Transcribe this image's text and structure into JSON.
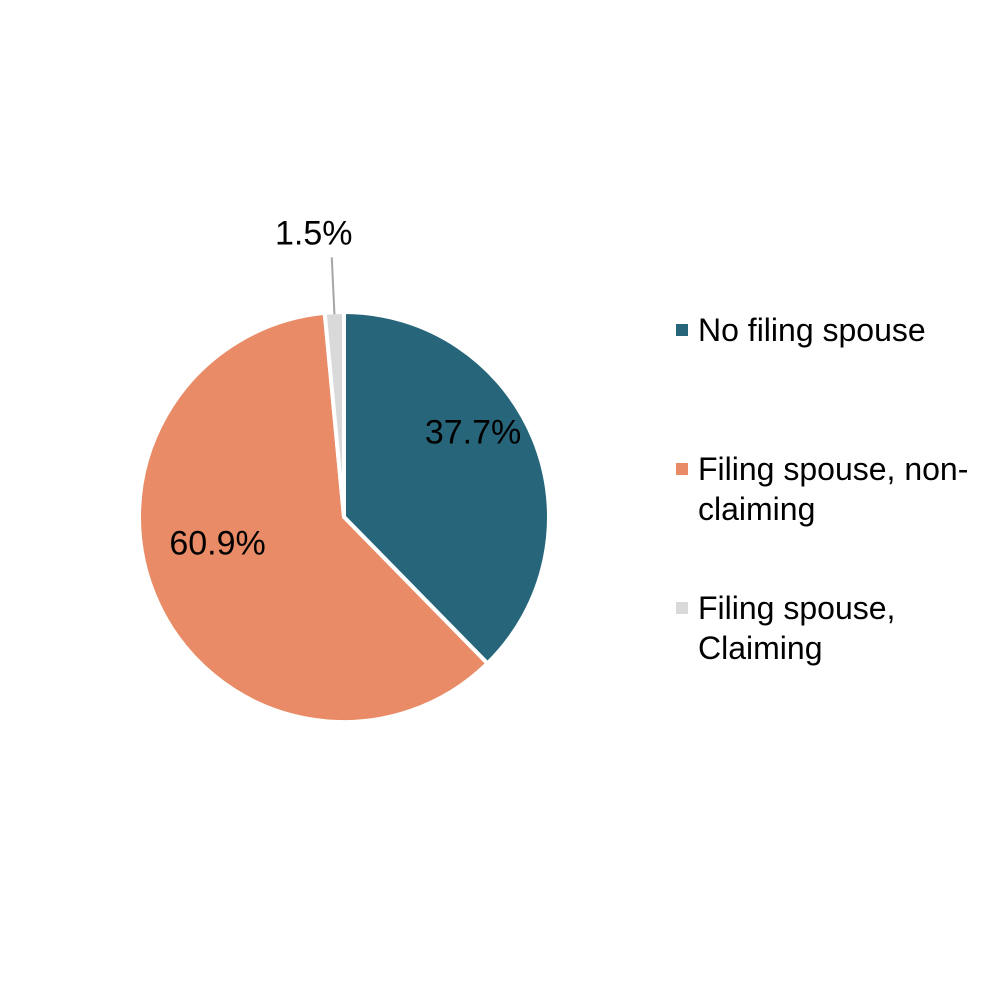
{
  "chart_data": {
    "type": "pie",
    "categories": [
      "No filing spouse",
      "Filing spouse, non-claiming",
      "Filing spouse, Claiming"
    ],
    "values": [
      37.7,
      60.9,
      1.5
    ],
    "value_labels": [
      "37.7%",
      "60.9%",
      "1.5%"
    ],
    "colors": [
      "#27667A",
      "#E88B66",
      "#D9D9D9"
    ],
    "legend": "right"
  }
}
